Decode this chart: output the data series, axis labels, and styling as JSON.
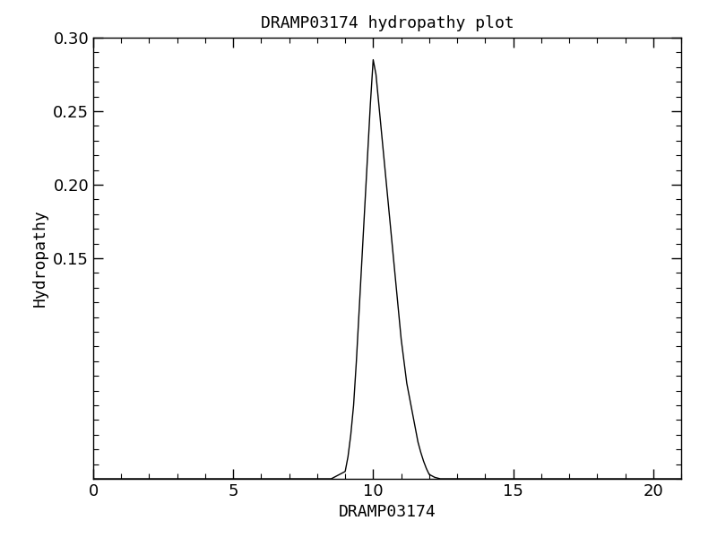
{
  "title": "DRAMP03174 hydropathy plot",
  "xlabel": "DRAMP03174",
  "ylabel": "Hydropathy",
  "xlim": [
    0,
    21
  ],
  "ylim": [
    0,
    0.3
  ],
  "xticks": [
    0,
    5,
    10,
    15,
    20
  ],
  "yticks": [
    0.15,
    0.2,
    0.25,
    0.3
  ],
  "background_color": "#ffffff",
  "line_color": "#000000",
  "line_width": 1.0,
  "x_data": [
    0,
    1,
    2,
    3,
    4,
    5,
    6,
    7,
    8,
    8.5,
    9.0,
    9.1,
    9.2,
    9.3,
    9.4,
    9.5,
    9.6,
    9.7,
    9.8,
    9.9,
    10.0,
    10.1,
    10.2,
    10.3,
    10.4,
    10.5,
    10.6,
    10.7,
    10.8,
    10.9,
    11.0,
    11.1,
    11.2,
    11.3,
    11.4,
    11.5,
    11.6,
    11.7,
    11.8,
    11.9,
    12.0,
    12.1,
    12.2,
    12.3,
    12.4,
    12.5,
    13.0,
    14,
    15,
    16,
    17,
    18,
    19,
    20,
    21
  ],
  "y_data": [
    0,
    0,
    0,
    0,
    0,
    0,
    0,
    0,
    0,
    0,
    0.005,
    0.015,
    0.03,
    0.05,
    0.08,
    0.115,
    0.15,
    0.185,
    0.22,
    0.255,
    0.285,
    0.275,
    0.255,
    0.235,
    0.215,
    0.195,
    0.175,
    0.155,
    0.135,
    0.115,
    0.095,
    0.08,
    0.065,
    0.055,
    0.045,
    0.035,
    0.025,
    0.018,
    0.012,
    0.007,
    0.003,
    0.002,
    0.001,
    0.0005,
    0,
    0,
    0,
    0,
    0,
    0,
    0,
    0,
    0,
    0,
    0
  ]
}
